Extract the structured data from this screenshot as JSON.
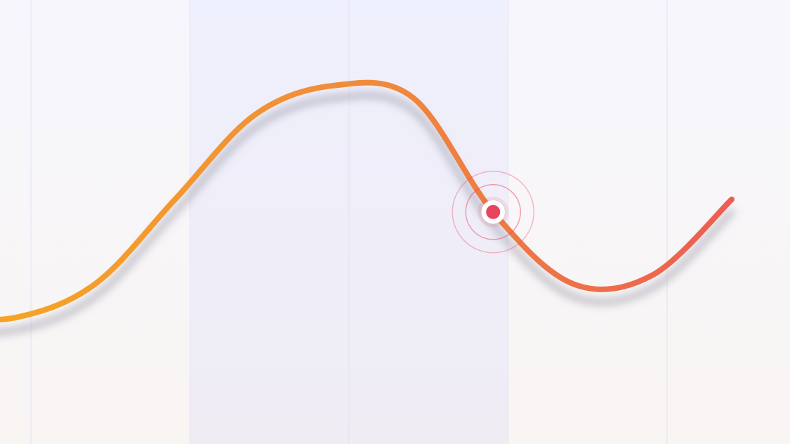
{
  "chart_data": {
    "type": "line",
    "title": "",
    "xlabel": "",
    "ylabel": "",
    "grid": true,
    "legend": "none",
    "x": [
      0,
      1,
      2,
      3,
      4,
      5,
      6,
      7,
      8,
      9,
      10
    ],
    "y": [
      30,
      30,
      38,
      58,
      78,
      85,
      82,
      55,
      38,
      40,
      58
    ],
    "ylim": [
      0,
      100
    ],
    "highlight": {
      "index": 7,
      "color": "#e8445e"
    },
    "colors": {
      "line_start": "#f7a823",
      "line_mid": "#f08a3a",
      "line_end": "#ec5d52",
      "marker": "#e8445e",
      "pulse": "#e8445e",
      "band_highlight": "#eeeefb",
      "band_warm": "#f8f4f1"
    }
  }
}
